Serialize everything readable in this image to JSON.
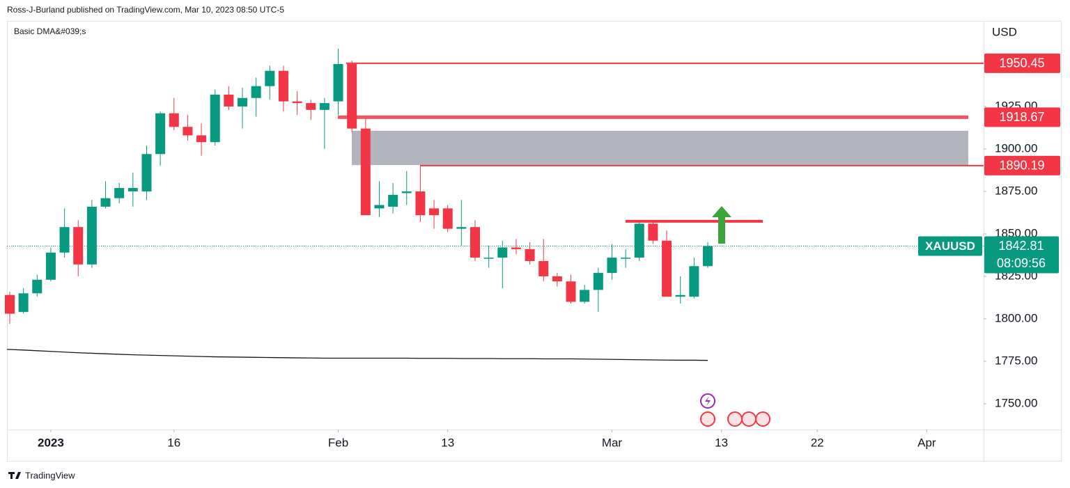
{
  "header": {
    "publisher": "Ross-J-Burland published on TradingView.com, Mar 10, 2023 08:50 UTC-5"
  },
  "footer": {
    "brand": "TradingView"
  },
  "chart_data": {
    "type": "candlestick",
    "currency": "USD",
    "symbol": "XAUUSD",
    "countdown": "08:09:56",
    "up_color": "#089981",
    "down_color": "#f23645",
    "categories": [
      "2022-12-28",
      "2022-12-29",
      "2022-12-30",
      "2023-01-03",
      "2023-01-04",
      "2023-01-05",
      "2023-01-06",
      "2023-01-09",
      "2023-01-10",
      "2023-01-11",
      "2023-01-12",
      "2023-01-13",
      "2023-01-16",
      "2023-01-17",
      "2023-01-18",
      "2023-01-19",
      "2023-01-20",
      "2023-01-23",
      "2023-01-24",
      "2023-01-25",
      "2023-01-26",
      "2023-01-27",
      "2023-01-30",
      "2023-01-31",
      "2023-02-01",
      "2023-02-02",
      "2023-02-03",
      "2023-02-06",
      "2023-02-07",
      "2023-02-08",
      "2023-02-09",
      "2023-02-10",
      "2023-02-13",
      "2023-02-14",
      "2023-02-15",
      "2023-02-16",
      "2023-02-17",
      "2023-02-20",
      "2023-02-21",
      "2023-02-22",
      "2023-02-23",
      "2023-02-24",
      "2023-02-27",
      "2023-02-28",
      "2023-03-01",
      "2023-03-02",
      "2023-03-03",
      "2023-03-06",
      "2023-03-07",
      "2023-03-08",
      "2023-03-09",
      "2023-03-10"
    ],
    "open": [
      1814,
      1804,
      1815,
      1823,
      1839,
      1854,
      1832,
      1866,
      1871,
      1875,
      1875,
      1897,
      1921,
      1913,
      1908,
      1904,
      1932,
      1925,
      1930,
      1937,
      1946,
      1928,
      1927,
      1923,
      1928,
      1950,
      1912,
      1865,
      1866,
      1874,
      1875,
      1865,
      1865,
      1853,
      1854,
      1836,
      1836,
      1842,
      1841,
      1834,
      1825,
      1822,
      1810,
      1817,
      1827,
      1836,
      1836,
      1856,
      1846,
      1813,
      1813,
      1831
    ],
    "high": [
      1816,
      1818,
      1826,
      1842,
      1865,
      1858,
      1870,
      1881,
      1880,
      1886,
      1902,
      1922,
      1930,
      1920,
      1915,
      1935,
      1937,
      1936,
      1942,
      1949,
      1949,
      1934,
      1929,
      1930,
      1959,
      1952,
      1918,
      1881,
      1880,
      1887,
      1890,
      1870,
      1867,
      1870,
      1858,
      1843,
      1846,
      1847,
      1845,
      1847,
      1827,
      1826,
      1820,
      1830,
      1844,
      1841,
      1858,
      1858,
      1852,
      1825,
      1836,
      1845
    ],
    "low": [
      1797,
      1803,
      1813,
      1822,
      1836,
      1825,
      1830,
      1865,
      1868,
      1866,
      1870,
      1890,
      1911,
      1905,
      1896,
      1902,
      1923,
      1912,
      1919,
      1929,
      1922,
      1920,
      1917,
      1900,
      1920,
      1910,
      1861,
      1860,
      1862,
      1867,
      1857,
      1853,
      1851,
      1843,
      1834,
      1830,
      1818,
      1838,
      1832,
      1822,
      1819,
      1809,
      1809,
      1804,
      1823,
      1830,
      1834,
      1844,
      1813,
      1809,
      1812,
      1830
    ],
    "close": [
      1803,
      1815,
      1823,
      1839,
      1854,
      1832,
      1866,
      1871,
      1877,
      1877,
      1897,
      1921,
      1913,
      1908,
      1904,
      1932,
      1925,
      1930,
      1937,
      1946,
      1928,
      1927,
      1923,
      1927,
      1950,
      1912,
      1861,
      1867,
      1873,
      1875,
      1861,
      1861,
      1853,
      1854,
      1836,
      1836,
      1842,
      1841,
      1834,
      1825,
      1822,
      1810,
      1817,
      1827,
      1836,
      1836,
      1856,
      1846,
      1813,
      1814,
      1831,
      1842.81
    ],
    "series": [
      {
        "name": "Basic DMA&#039;s",
        "color": "#131722",
        "values": [
          1782.0,
          1781.6,
          1781.2,
          1780.8,
          1780.4,
          1780.0,
          1779.7,
          1779.4,
          1779.1,
          1778.8,
          1778.6,
          1778.4,
          1778.2,
          1778.0,
          1777.8,
          1777.6,
          1777.5,
          1777.4,
          1777.3,
          1777.2,
          1777.1,
          1777.0,
          1776.9,
          1776.8,
          1776.8,
          1776.8,
          1776.8,
          1776.8,
          1776.8,
          1776.8,
          1776.7,
          1776.7,
          1776.7,
          1776.6,
          1776.6,
          1776.6,
          1776.5,
          1776.5,
          1776.5,
          1776.4,
          1776.4,
          1776.4,
          1776.3,
          1776.2,
          1776.1,
          1776.0,
          1775.9,
          1775.8,
          1775.7,
          1775.6,
          1775.6,
          1775.5
        ]
      }
    ],
    "levels": [
      1950.45,
      1918.67,
      1890.19
    ],
    "zone": [
      1890.5,
      1910.7
    ],
    "resistance": 1857.4,
    "ylim": [
      1734.8,
      1975.4
    ],
    "yticks": [
      {
        "value": 1750,
        "label": "1750.00"
      },
      {
        "value": 1775,
        "label": "1775.00"
      },
      {
        "value": 1800,
        "label": "1800.00"
      },
      {
        "value": 1825,
        "label": "1825.00"
      },
      {
        "value": 1850,
        "label": "1850.00"
      },
      {
        "value": 1875,
        "label": "1875.00"
      },
      {
        "value": 1900,
        "label": "1900.00"
      },
      {
        "value": 1925,
        "label": "1925.00"
      }
    ],
    "xticks": [
      {
        "value": "2023-01-03",
        "label": "2023"
      },
      {
        "value": "2023-01-16",
        "label": "16"
      },
      {
        "value": "2023-02-01",
        "label": "Feb"
      },
      {
        "value": "2023-02-13",
        "label": "13"
      },
      {
        "value": "2023-03-01",
        "label": "Mar"
      },
      {
        "value": "2023-03-13",
        "label": "13"
      },
      {
        "value": "2023-03-22",
        "label": "22"
      },
      {
        "value": "2023-04-03",
        "label": "Apr"
      }
    ]
  }
}
